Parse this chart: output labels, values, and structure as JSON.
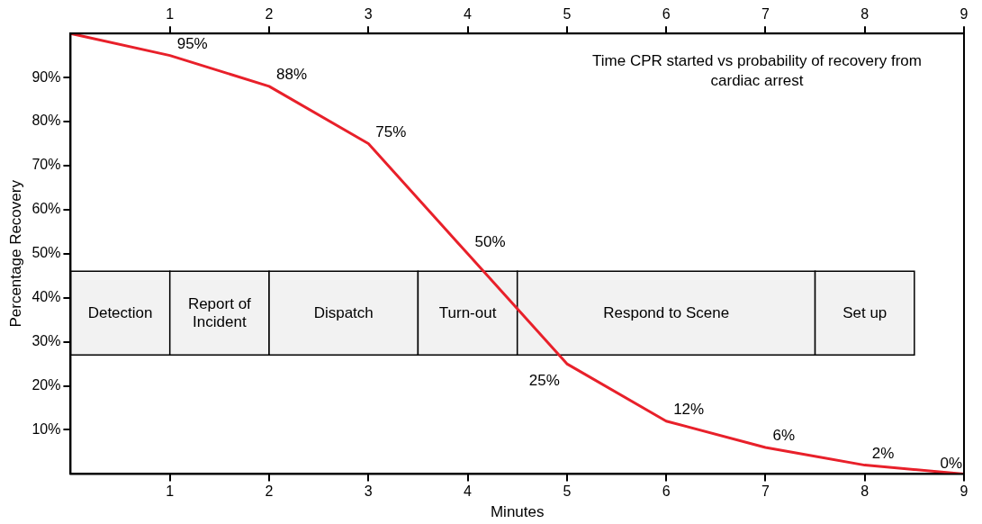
{
  "chart_data": {
    "type": "line",
    "xlabel": "Minutes",
    "ylabel": "Percentage Recovery",
    "annotations": [
      "Time CPR started vs probability of recovery from cardiac arrest"
    ],
    "x": [
      0,
      1,
      2,
      3,
      4,
      5,
      6,
      7,
      8,
      9
    ],
    "series": [
      {
        "color": "#e8202a",
        "values": [
          100,
          95,
          88,
          75,
          50,
          25,
          12,
          6,
          2,
          0
        ],
        "value_labels": [
          null,
          "95%",
          "88%",
          "75%",
          "50%",
          "25%",
          "12%",
          "6%",
          "2%",
          "0%"
        ]
      }
    ],
    "xlim": [
      0,
      9
    ],
    "xticks": [
      1,
      2,
      3,
      4,
      5,
      6,
      7,
      8,
      9
    ],
    "x2lim": [
      0,
      9
    ],
    "x2ticks": [
      1,
      2,
      3,
      4,
      5,
      6,
      7,
      8,
      9
    ],
    "ylim": [
      0,
      100
    ],
    "yticks": [
      {
        "value": 10,
        "label": "10%"
      },
      {
        "value": 20,
        "label": "20%"
      },
      {
        "value": 30,
        "label": "30%"
      },
      {
        "value": 40,
        "label": "40%"
      },
      {
        "value": 50,
        "label": "50%"
      },
      {
        "value": 60,
        "label": "60%"
      },
      {
        "value": 70,
        "label": "70%"
      },
      {
        "value": 80,
        "label": "80%"
      },
      {
        "value": 90,
        "label": "90%"
      }
    ],
    "bands": [
      {
        "axis": "x",
        "from": 0,
        "to": 1,
        "label": "Detection",
        "color": "#f2f2f2"
      },
      {
        "axis": "x",
        "from": 1,
        "to": 2,
        "label": "Report of Incident",
        "color": "#f2f2f2"
      },
      {
        "axis": "x",
        "from": 2,
        "to": 3.5,
        "label": "Dispatch",
        "color": "#f2f2f2"
      },
      {
        "axis": "x",
        "from": 3.5,
        "to": 4.5,
        "label": "Turn-out",
        "color": "#f2f2f2"
      },
      {
        "axis": "x",
        "from": 4.5,
        "to": 7.5,
        "label": "Respond to Scene",
        "color": "#f2f2f2"
      },
      {
        "axis": "x",
        "from": 7.5,
        "to": 8.5,
        "label": "Set up",
        "color": "#f2f2f2"
      }
    ],
    "grid": false,
    "legend": false,
    "marker": "none",
    "line_style": "solid"
  }
}
